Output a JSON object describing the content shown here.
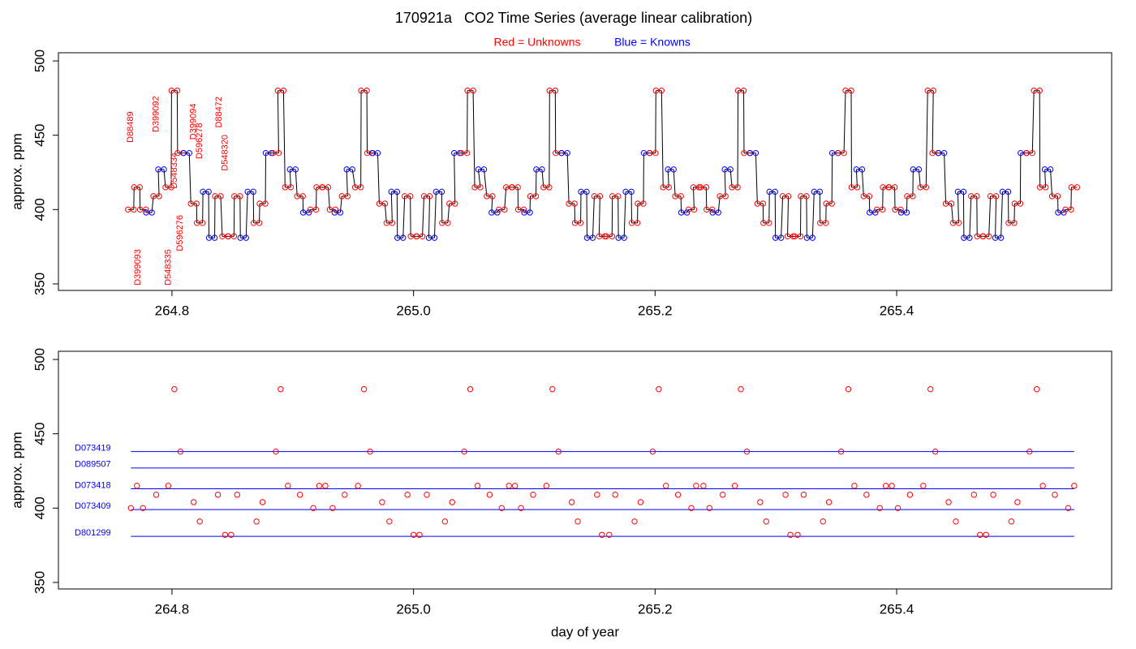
{
  "chart_data": [
    {
      "type": "line",
      "title": "170921a   CO2 Time Series (average linear calibration)",
      "ylabel": "approx. ppm",
      "xlim": [
        264.706,
        265.578
      ],
      "ylim": [
        345.6,
        505.5
      ],
      "xticks": [
        264.8,
        {
          "value": 265,
          "label": "265.0"
        },
        265.2,
        265.4
      ],
      "yticks": [
        350,
        400,
        450,
        500
      ],
      "trace_color": "#000000",
      "series": [
        {
          "name": "Red = Unknowns",
          "color": "#ff0000",
          "x": [
            264.766,
            264.771,
            264.776,
            264.787,
            264.797,
            264.802,
            264.807,
            264.818,
            264.823,
            264.838,
            264.844,
            264.849,
            264.854,
            264.87,
            264.875,
            264.886,
            264.89,
            264.896,
            264.906,
            264.917,
            264.922,
            264.927,
            264.933,
            264.943,
            264.954,
            264.959,
            264.964,
            264.974,
            264.98,
            264.995,
            265.0,
            265.005,
            265.011,
            265.026,
            265.032,
            265.042,
            265.047,
            265.053,
            265.063,
            265.073,
            265.079,
            265.084,
            265.089,
            265.099,
            265.11,
            265.115,
            265.12,
            265.131,
            265.136,
            265.152,
            265.156,
            265.162,
            265.167,
            265.183,
            265.188,
            265.198,
            265.203,
            265.209,
            265.219,
            265.23,
            265.234,
            265.24,
            265.245,
            265.256,
            265.266,
            265.271,
            265.276,
            265.287,
            265.292,
            265.308,
            265.312,
            265.318,
            265.323,
            265.339,
            265.344,
            265.354,
            265.36,
            265.365,
            265.375,
            265.386,
            265.391,
            265.396,
            265.401,
            265.411,
            265.422,
            265.428,
            265.432,
            265.443,
            265.449,
            265.464,
            265.469,
            265.474,
            265.48,
            265.495,
            265.5,
            265.51,
            265.516,
            265.521,
            265.531,
            265.542,
            265.547
          ],
          "values": [
            400,
            415,
            400,
            409,
            415,
            480,
            438,
            404,
            391,
            409,
            382,
            382,
            409,
            391,
            404,
            438,
            480,
            415,
            409,
            400,
            415,
            415,
            400,
            409,
            415,
            480,
            438,
            404,
            391,
            409,
            382,
            382,
            409,
            391,
            404,
            438,
            480,
            415,
            409,
            400,
            415,
            415,
            400,
            409,
            415,
            480,
            438,
            404,
            391,
            409,
            382,
            382,
            409,
            391,
            404,
            438,
            480,
            415,
            409,
            400,
            415,
            415,
            400,
            409,
            415,
            480,
            438,
            404,
            391,
            409,
            382,
            382,
            409,
            391,
            404,
            438,
            480,
            415,
            409,
            400,
            415,
            415,
            400,
            409,
            415,
            480,
            438,
            404,
            391,
            409,
            382,
            382,
            409,
            391,
            404,
            438,
            480,
            415,
            409,
            400,
            415
          ]
        },
        {
          "name": "Blue = Knowns",
          "color": "#0000ff",
          "x": [
            264.781,
            264.791,
            264.812,
            264.828,
            264.833,
            264.859,
            264.865,
            264.88,
            264.9,
            264.911,
            264.937,
            264.947,
            264.968,
            264.984,
            264.989,
            265.015,
            265.021,
            265.036,
            265.056,
            265.067,
            265.094,
            265.104,
            265.125,
            265.141,
            265.146,
            265.172,
            265.178,
            265.193,
            265.213,
            265.224,
            265.25,
            265.26,
            265.281,
            265.297,
            265.302,
            265.328,
            265.334,
            265.349,
            265.369,
            265.38,
            265.406,
            265.416,
            265.437,
            265.453,
            265.458,
            265.484,
            265.49,
            265.505,
            265.525,
            265.536
          ],
          "values": [
            398,
            427,
            438,
            412,
            381,
            381,
            412,
            438,
            427,
            398,
            398,
            427,
            438,
            412,
            381,
            381,
            412,
            438,
            427,
            398,
            398,
            427,
            438,
            412,
            381,
            381,
            412,
            438,
            427,
            398,
            398,
            427,
            438,
            412,
            381,
            381,
            412,
            438,
            427,
            398,
            398,
            427,
            438,
            412,
            381,
            381,
            412,
            438,
            427,
            398
          ]
        }
      ],
      "annotation_color": "#ff0000",
      "annotations": [
        {
          "text": "D88489",
          "x": 264.766,
          "y": 445
        },
        {
          "text": "D399092",
          "x": 264.787,
          "y": 452
        },
        {
          "text": "D548334",
          "x": 264.802,
          "y": 414
        },
        {
          "text": "D399094",
          "x": 264.818,
          "y": 447
        },
        {
          "text": "D596278",
          "x": 264.823,
          "y": 434
        },
        {
          "text": "D88472",
          "x": 264.839,
          "y": 455
        },
        {
          "text": "D548320",
          "x": 264.844,
          "y": 426
        },
        {
          "text": "D399093",
          "x": 264.772,
          "y": 349
        },
        {
          "text": "D548335",
          "x": 264.797,
          "y": 349
        },
        {
          "text": "D596276",
          "x": 264.807,
          "y": 372
        }
      ]
    },
    {
      "type": "scatter",
      "ylabel": "approx. ppm",
      "xlabel": "day of year",
      "xlim": [
        264.706,
        265.578
      ],
      "ylim": [
        345.6,
        505.5
      ],
      "xticks": [
        264.8,
        {
          "value": 265,
          "label": "265.0"
        },
        265.2,
        265.4
      ],
      "yticks": [
        350,
        400,
        450,
        500
      ],
      "series": [
        {
          "color": "#ff0000",
          "x": [
            264.766,
            264.771,
            264.776,
            264.787,
            264.797,
            264.802,
            264.807,
            264.818,
            264.823,
            264.838,
            264.844,
            264.849,
            264.854,
            264.87,
            264.875,
            264.886,
            264.89,
            264.896,
            264.906,
            264.917,
            264.922,
            264.927,
            264.933,
            264.943,
            264.954,
            264.959,
            264.964,
            264.974,
            264.98,
            264.995,
            265.0,
            265.005,
            265.011,
            265.026,
            265.032,
            265.042,
            265.047,
            265.053,
            265.063,
            265.073,
            265.079,
            265.084,
            265.089,
            265.099,
            265.11,
            265.115,
            265.12,
            265.131,
            265.136,
            265.152,
            265.156,
            265.162,
            265.167,
            265.183,
            265.188,
            265.198,
            265.203,
            265.209,
            265.219,
            265.23,
            265.234,
            265.24,
            265.245,
            265.256,
            265.266,
            265.271,
            265.276,
            265.287,
            265.292,
            265.308,
            265.312,
            265.318,
            265.323,
            265.339,
            265.344,
            265.354,
            265.36,
            265.365,
            265.375,
            265.386,
            265.391,
            265.396,
            265.401,
            265.411,
            265.422,
            265.428,
            265.432,
            265.443,
            265.449,
            265.464,
            265.469,
            265.474,
            265.48,
            265.495,
            265.5,
            265.51,
            265.516,
            265.521,
            265.531,
            265.542,
            265.547
          ],
          "values": [
            400,
            415,
            400,
            409,
            415,
            480,
            438,
            404,
            391,
            409,
            382,
            382,
            409,
            391,
            404,
            438,
            480,
            415,
            409,
            400,
            415,
            415,
            400,
            409,
            415,
            480,
            438,
            404,
            391,
            409,
            382,
            382,
            409,
            391,
            404,
            438,
            480,
            415,
            409,
            400,
            415,
            415,
            400,
            409,
            415,
            480,
            438,
            404,
            391,
            409,
            382,
            382,
            409,
            391,
            404,
            438,
            480,
            415,
            409,
            400,
            415,
            415,
            400,
            409,
            415,
            480,
            438,
            404,
            391,
            409,
            382,
            382,
            409,
            391,
            404,
            438,
            480,
            415,
            409,
            400,
            415,
            415,
            400,
            409,
            415,
            480,
            438,
            404,
            391,
            409,
            382,
            382,
            409,
            391,
            404,
            438,
            480,
            415,
            409,
            400,
            415
          ]
        }
      ],
      "reference_color": "#0000ff",
      "reference_lines": [
        {
          "label": "D073419",
          "value": 438
        },
        {
          "label": "D089507",
          "value": 427
        },
        {
          "label": "D073418",
          "value": 413
        },
        {
          "label": "D073409",
          "value": 399
        },
        {
          "label": "D801299",
          "value": 381
        }
      ]
    }
  ]
}
